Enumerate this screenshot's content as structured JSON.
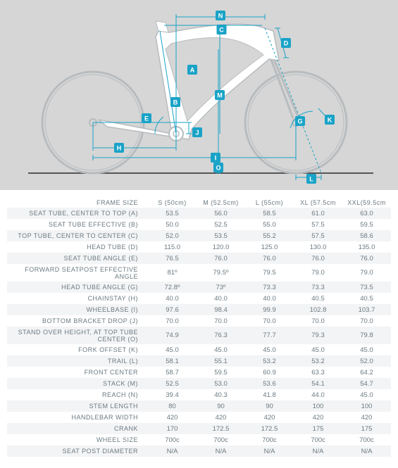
{
  "diagram": {
    "background_color": "#d6d6d6",
    "frame_fill": "#ffffff",
    "frame_stroke": "#b8bcbf",
    "dim_line_color": "#1aa3c7",
    "label_bg": "#1aa3c7",
    "label_text": "#ffffff",
    "ground_color": "#555555",
    "wheel_stroke": "#b8bcbf",
    "labels": [
      "A",
      "B",
      "C",
      "D",
      "E",
      "G",
      "H",
      "I",
      "J",
      "K",
      "L",
      "M",
      "N",
      "O"
    ]
  },
  "geometry": {
    "header_label": "FRAME SIZE",
    "columns": [
      "S (50cm)",
      "M (52.5cm)",
      "L (55cm)",
      "XL (57.5cm",
      "XXL(59.5cm"
    ],
    "rows": [
      {
        "label": "SEAT TUBE, CENTER TO TOP (A)",
        "values": [
          "53.5",
          "56.0",
          "58.5",
          "61.0",
          "63.0"
        ]
      },
      {
        "label": "SEAT TUBE EFFECTIVE (B)",
        "values": [
          "50.0",
          "52.5",
          "55.0",
          "57.5",
          "59.5"
        ]
      },
      {
        "label": "TOP TUBE, CENTER TO CENTER (C)",
        "values": [
          "52.0",
          "53.5",
          "55.2",
          "57.5",
          "58.6"
        ]
      },
      {
        "label": "HEAD TUBE (D)",
        "values": [
          "115.0",
          "120.0",
          "125.0",
          "130.0",
          "135.0"
        ]
      },
      {
        "label": "SEAT TUBE ANGLE (E)",
        "values": [
          "76.5",
          "76.0",
          "76.0",
          "76.0",
          "76.0"
        ]
      },
      {
        "label": "FORWARD SEATPOST EFFECTIVE ANGLE",
        "values": [
          "81º",
          "79.5º",
          "79.5",
          "79.0",
          "79.0"
        ]
      },
      {
        "label": "HEAD TUBE ANGLE (G)",
        "values": [
          "72.8º",
          "73º",
          "73.3",
          "73.3",
          "73.5"
        ]
      },
      {
        "label": "CHAINSTAY (H)",
        "values": [
          "40.0",
          "40.0",
          "40.0",
          "40.5",
          "40.5"
        ]
      },
      {
        "label": "WHEELBASE (I)",
        "values": [
          "97.6",
          "98.4",
          "99.9",
          "102.8",
          "103.7"
        ]
      },
      {
        "label": "BOTTOM BRACKET DROP (J)",
        "values": [
          "70.0",
          "70.0",
          "70.0",
          "70.0",
          "70.0"
        ]
      },
      {
        "label": "STAND OVER HEIGHT, AT TOP TUBE CENTER (O)",
        "values": [
          "74.9",
          "76.3",
          "77.7",
          "79.3",
          "79.8"
        ]
      },
      {
        "label": "FORK OFFSET (K)",
        "values": [
          "45.0",
          "45.0",
          "45.0",
          "45.0",
          "45.0"
        ]
      },
      {
        "label": "TRAIL (L)",
        "values": [
          "58.1",
          "55.1",
          "53.2",
          "53.2",
          "52.0"
        ]
      },
      {
        "label": "FRONT CENTER",
        "values": [
          "58.7",
          "59.5",
          "60.9",
          "63.3",
          "64.2"
        ]
      },
      {
        "label": "STACK (M)",
        "values": [
          "52.5",
          "53.0",
          "53.6",
          "54.1",
          "54.7"
        ]
      },
      {
        "label": "REACH (N)",
        "values": [
          "39.4",
          "40.3",
          "41.8",
          "44.0",
          "45.0"
        ]
      },
      {
        "label": "STEM LENGTH",
        "values": [
          "80",
          "90",
          "90",
          "100",
          "100"
        ]
      },
      {
        "label": "HANDLEBAR WIDTH",
        "values": [
          "420",
          "420",
          "420",
          "420",
          "420"
        ]
      },
      {
        "label": "CRANK",
        "values": [
          "170",
          "172.5",
          "172.5",
          "175",
          "175"
        ]
      },
      {
        "label": "WHEEL SIZE",
        "values": [
          "700c",
          "700c",
          "700c",
          "700c",
          "700c"
        ]
      },
      {
        "label": "SEAT POST DIAMETER",
        "values": [
          "N/A",
          "N/A",
          "N/A",
          "N/A",
          "N/A"
        ]
      }
    ]
  }
}
